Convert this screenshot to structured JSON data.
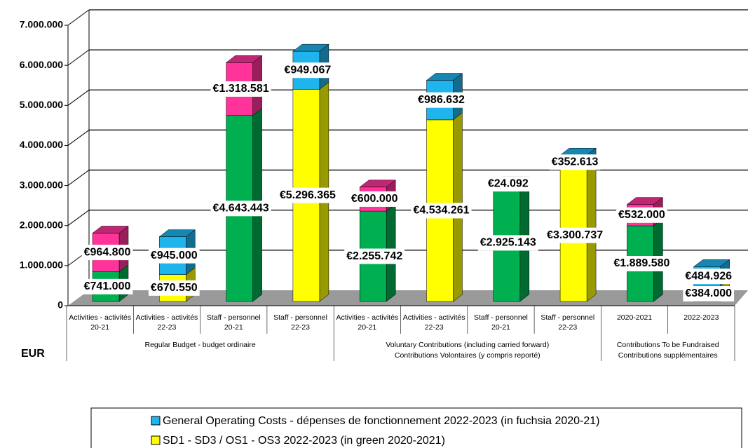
{
  "chart_data": {
    "type": "bar3d_stacked",
    "y_axis_label": "EUR",
    "groups": [
      {
        "label": [
          "Regular Budget - budget ordinaire"
        ],
        "categories": [
          [
            "Activities - activités",
            "20-21"
          ],
          [
            "Activities - activités",
            "22-23"
          ],
          [
            "Staff - personnel",
            "20-21"
          ],
          [
            "Staff - personnel",
            "22-23"
          ]
        ]
      },
      {
        "label": [
          "Voluntary Contributions (including carried forward)",
          "Contributions Volontaires (y compris reporté)"
        ],
        "categories": [
          [
            "Activities - activités",
            "20-21"
          ],
          [
            "Activities - activités",
            "22-23"
          ],
          [
            "Staff - personnel",
            "20-21"
          ],
          [
            "Staff - personnel",
            "22-23"
          ]
        ]
      },
      {
        "label": [
          "Contributions To be Fundraised",
          "Contributions supplémentaires"
        ],
        "categories": [
          [
            "2020-2021"
          ],
          [
            "2022-2023"
          ]
        ]
      }
    ],
    "series": [
      {
        "name": "SD1 - SD3 / OS1 - OS3 2022-2023 (in green 2020-2021)",
        "color": "#ffff00",
        "colors": [
          "#00b050",
          "#ffff00",
          "#00b050",
          "#ffff00",
          "#00b050",
          "#ffff00",
          "#00b050",
          "#ffff00",
          "#00b050",
          "#ffff00"
        ],
        "values": [
          741000,
          670550,
          4643443,
          5296365,
          2255742,
          4534261,
          2925143,
          3300737,
          1889580,
          384000
        ],
        "value_labels": [
          "€741.000",
          "€670.550",
          "€4.643.443",
          "€5.296.365",
          "€2.255.742",
          "€4.534.261",
          "€2.925.143",
          "€3.300.737",
          "€1.889.580",
          "€384.000"
        ]
      },
      {
        "name": "General Operating Costs - dépenses de fonctionnement 2022-2023 (in fuchsia 2020-21)",
        "color": "#1fb4ec",
        "colors": [
          "#ff3399",
          "#1fb4ec",
          "#ff3399",
          "#1fb4ec",
          "#ff3399",
          "#1fb4ec",
          "#ff3399",
          "#1fb4ec",
          "#ff3399",
          "#1fb4ec"
        ],
        "values": [
          964800,
          945000,
          1318581,
          949067,
          600000,
          986632,
          24092,
          352613,
          532000,
          484926
        ],
        "value_labels": [
          "€964.800",
          "€945.000",
          "€1.318.581",
          "€949.067",
          "€600.000",
          "€986.632",
          "€24.092",
          "€352.613",
          "€532.000",
          "€484.926"
        ]
      }
    ],
    "ylim": [
      0,
      7000000
    ],
    "yticks": [
      0,
      {
        "value": 1000000,
        "label": "1.000.000"
      },
      {
        "value": 2000000,
        "label": "2.000.000"
      },
      {
        "value": 3000000,
        "label": "3.000.000"
      },
      {
        "value": 4000000,
        "label": "4.000.000"
      },
      {
        "value": 5000000,
        "label": "5.000.000"
      },
      {
        "value": 6000000,
        "label": "6.000.000"
      },
      {
        "value": 7000000,
        "label": "7.000.000"
      }
    ],
    "grid": true,
    "legend_position": "bottom"
  }
}
